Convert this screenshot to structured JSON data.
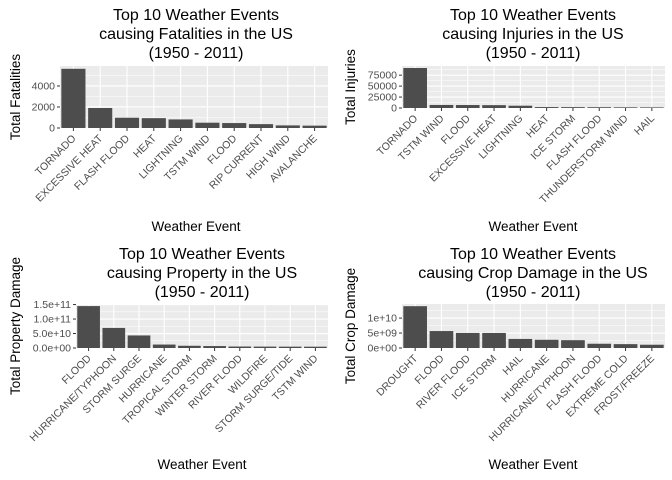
{
  "chart_data": [
    {
      "type": "bar",
      "title": "Top 10 Weather Events\ncausing Fatalities in the US\n(1950 - 2011)",
      "xlabel": "Weather Event",
      "ylabel": "Total Fatalities",
      "categories": [
        "TORNADO",
        "EXCESSIVE HEAT",
        "FLASH FLOOD",
        "HEAT",
        "LIGHTNING",
        "TSTM WIND",
        "FLOOD",
        "RIP CURRENT",
        "HIGH WIND",
        "AVALANCHE"
      ],
      "values": [
        5633,
        1903,
        978,
        937,
        816,
        504,
        470,
        368,
        248,
        224
      ],
      "ylim": [
        0,
        5900
      ],
      "yticks": [
        0,
        2000,
        4000
      ],
      "ytick_labels": [
        "0",
        "2000",
        "4000"
      ],
      "grid": true
    },
    {
      "type": "bar",
      "title": "Top 10 Weather Events\ncausing Injuries in the US\n(1950 - 2011)",
      "xlabel": "Weather Event",
      "ylabel": "Total Injuries",
      "categories": [
        "TORNADO",
        "TSTM WIND",
        "FLOOD",
        "EXCESSIVE HEAT",
        "LIGHTNING",
        "HEAT",
        "ICE STORM",
        "FLASH FLOOD",
        "THUNDERSTORM WIND",
        "HAIL"
      ],
      "values": [
        91346,
        6957,
        6789,
        6525,
        5230,
        2100,
        1975,
        1777,
        1488,
        1361
      ],
      "ylim": [
        0,
        95900
      ],
      "yticks": [
        0,
        25000,
        50000,
        75000
      ],
      "ytick_labels": [
        "0",
        "25000",
        "50000",
        "75000"
      ],
      "grid": true
    },
    {
      "type": "bar",
      "title": "Top 10 Weather Events\ncausing Property in the US\n(1950 - 2011)",
      "xlabel": "Weather Event",
      "ylabel": "Total Property Damage",
      "categories": [
        "FLOOD",
        "HURRICANE/TYPHOON",
        "STORM SURGE",
        "HURRICANE",
        "TROPICAL STORM",
        "WINTER STORM",
        "RIVER FLOOD",
        "WILDFIRE",
        "STORM SURGE/TIDE",
        "TSTM WIND"
      ],
      "values": [
        144700000000,
        69300000000,
        43300000000,
        11900000000,
        7700000000,
        6700000000,
        5100000000,
        4800000000,
        4600000000,
        4500000000
      ],
      "ylim": [
        0,
        151900000000
      ],
      "yticks": [
        0,
        50000000000,
        100000000000,
        150000000000
      ],
      "ytick_labels": [
        "0.0e+00",
        "5.0e+10",
        "1.0e+11",
        "1.5e+11"
      ],
      "grid": true
    },
    {
      "type": "bar",
      "title": "Top 10 Weather Events\ncausing Crop Damage in the US\n(1950 - 2011)",
      "xlabel": "Weather Event",
      "ylabel": "Total Crop Damage",
      "categories": [
        "DROUGHT",
        "FLOOD",
        "RIVER FLOOD",
        "ICE STORM",
        "HAIL",
        "HURRICANE",
        "HURRICANE/TYPHOON",
        "FLASH FLOOD",
        "EXTREME COLD",
        "FROST/FREEZE"
      ],
      "values": [
        13970000000,
        5660000000,
        5030000000,
        5020000000,
        3030000000,
        2740000000,
        2610000000,
        1420000000,
        1290000000,
        1090000000
      ],
      "ylim": [
        0,
        14700000000
      ],
      "yticks": [
        0,
        5000000000,
        10000000000
      ],
      "ytick_labels": [
        "0e+00",
        "5e+09",
        "1e+10"
      ],
      "grid": true
    }
  ]
}
